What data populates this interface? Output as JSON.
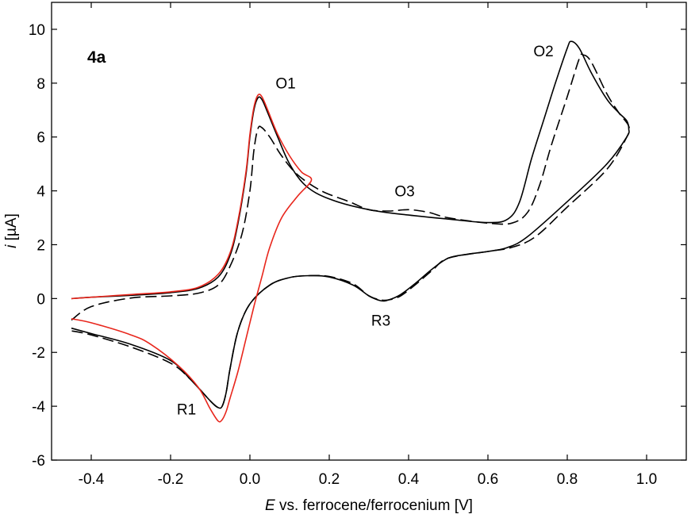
{
  "chart_data": {
    "type": "line",
    "panel_label": "4a",
    "xlabel": {
      "italic": "E",
      "rest": " vs. ferrocene/ferrocenium [V]"
    },
    "ylabel": {
      "italic": "i",
      "rest": " [µA]"
    },
    "xlim": [
      -0.5,
      1.1
    ],
    "ylim": [
      -6,
      11
    ],
    "x_ticks": [
      -0.4,
      -0.2,
      0.0,
      0.2,
      0.4,
      0.6,
      0.8,
      1.0
    ],
    "x_tick_labels": [
      "-0.4",
      "-0.2",
      "0.0",
      "0.2",
      "0.4",
      "0.6",
      "0.8",
      "1.0"
    ],
    "y_ticks": [
      -6,
      -4,
      -2,
      0,
      2,
      4,
      6,
      8,
      10
    ],
    "y_tick_labels": [
      "-6",
      "-4",
      "-2",
      "0",
      "2",
      "4",
      "6",
      "8",
      "10"
    ],
    "grid": false,
    "annotations": [
      {
        "text": "O1",
        "x": 0.09,
        "y": 7.8
      },
      {
        "text": "O2",
        "x": 0.74,
        "y": 9.0
      },
      {
        "text": "O3",
        "x": 0.39,
        "y": 3.8
      },
      {
        "text": "R1",
        "x": -0.16,
        "y": -4.3
      },
      {
        "text": "R3",
        "x": 0.33,
        "y": -1.0
      }
    ],
    "series": [
      {
        "color": "#000000",
        "dash": "solid",
        "points": [
          [
            -0.45,
            0.0
          ],
          [
            -0.4,
            0.05
          ],
          [
            -0.3,
            0.12
          ],
          [
            -0.2,
            0.22
          ],
          [
            -0.13,
            0.38
          ],
          [
            -0.08,
            0.8
          ],
          [
            -0.05,
            1.6
          ],
          [
            -0.03,
            2.8
          ],
          [
            -0.01,
            4.6
          ],
          [
            0.0,
            6.0
          ],
          [
            0.01,
            7.0
          ],
          [
            0.02,
            7.45
          ],
          [
            0.03,
            7.4
          ],
          [
            0.045,
            6.9
          ],
          [
            0.07,
            6.0
          ],
          [
            0.1,
            5.0
          ],
          [
            0.14,
            4.2
          ],
          [
            0.2,
            3.7
          ],
          [
            0.3,
            3.3
          ],
          [
            0.4,
            3.1
          ],
          [
            0.5,
            2.95
          ],
          [
            0.6,
            2.82
          ],
          [
            0.65,
            2.95
          ],
          [
            0.68,
            3.6
          ],
          [
            0.71,
            5.2
          ],
          [
            0.74,
            6.6
          ],
          [
            0.77,
            8.0
          ],
          [
            0.8,
            9.3
          ],
          [
            0.81,
            9.55
          ],
          [
            0.83,
            9.3
          ],
          [
            0.86,
            8.4
          ],
          [
            0.9,
            7.4
          ],
          [
            0.93,
            6.9
          ],
          [
            0.95,
            6.6
          ],
          [
            0.955,
            6.3
          ],
          [
            0.95,
            6.0
          ],
          [
            0.9,
            5.0
          ],
          [
            0.8,
            3.6
          ],
          [
            0.7,
            2.3
          ],
          [
            0.65,
            1.9
          ],
          [
            0.6,
            1.75
          ],
          [
            0.55,
            1.65
          ],
          [
            0.5,
            1.5
          ],
          [
            0.46,
            1.1
          ],
          [
            0.42,
            0.6
          ],
          [
            0.38,
            0.15
          ],
          [
            0.35,
            -0.05
          ],
          [
            0.33,
            -0.08
          ],
          [
            0.3,
            0.1
          ],
          [
            0.26,
            0.5
          ],
          [
            0.2,
            0.8
          ],
          [
            0.15,
            0.85
          ],
          [
            0.1,
            0.78
          ],
          [
            0.05,
            0.5
          ],
          [
            0.0,
            -0.2
          ],
          [
            -0.03,
            -1.2
          ],
          [
            -0.05,
            -2.6
          ],
          [
            -0.06,
            -3.5
          ],
          [
            -0.07,
            -4.0
          ],
          [
            -0.08,
            -4.05
          ],
          [
            -0.1,
            -3.8
          ],
          [
            -0.15,
            -3.0
          ],
          [
            -0.2,
            -2.3
          ],
          [
            -0.3,
            -1.7
          ],
          [
            -0.4,
            -1.3
          ],
          [
            -0.45,
            -1.1
          ]
        ]
      },
      {
        "color": "#000000",
        "dash": "dashed",
        "points": [
          [
            -0.45,
            -0.8
          ],
          [
            -0.4,
            -0.3
          ],
          [
            -0.3,
            0.02
          ],
          [
            -0.2,
            0.1
          ],
          [
            -0.13,
            0.2
          ],
          [
            -0.08,
            0.5
          ],
          [
            -0.05,
            1.2
          ],
          [
            -0.02,
            2.4
          ],
          [
            0.0,
            4.0
          ],
          [
            0.01,
            5.5
          ],
          [
            0.02,
            6.3
          ],
          [
            0.03,
            6.35
          ],
          [
            0.05,
            6.0
          ],
          [
            0.08,
            5.3
          ],
          [
            0.12,
            4.6
          ],
          [
            0.18,
            4.0
          ],
          [
            0.25,
            3.6
          ],
          [
            0.3,
            3.3
          ],
          [
            0.35,
            3.25
          ],
          [
            0.4,
            3.3
          ],
          [
            0.45,
            3.2
          ],
          [
            0.5,
            3.0
          ],
          [
            0.6,
            2.8
          ],
          [
            0.66,
            2.8
          ],
          [
            0.7,
            3.2
          ],
          [
            0.73,
            4.2
          ],
          [
            0.76,
            5.7
          ],
          [
            0.8,
            7.5
          ],
          [
            0.83,
            8.9
          ],
          [
            0.84,
            9.05
          ],
          [
            0.86,
            8.8
          ],
          [
            0.9,
            7.6
          ],
          [
            0.93,
            6.9
          ],
          [
            0.955,
            6.4
          ],
          [
            0.95,
            6.0
          ],
          [
            0.9,
            4.8
          ],
          [
            0.8,
            3.4
          ],
          [
            0.72,
            2.3
          ],
          [
            0.66,
            1.9
          ],
          [
            0.6,
            1.75
          ],
          [
            0.5,
            1.5
          ],
          [
            0.46,
            1.05
          ],
          [
            0.42,
            0.55
          ],
          [
            0.38,
            0.1
          ],
          [
            0.35,
            -0.05
          ],
          [
            0.33,
            -0.05
          ],
          [
            0.3,
            0.1
          ],
          [
            0.26,
            0.55
          ],
          [
            0.2,
            0.82
          ],
          [
            0.15,
            0.85
          ],
          [
            0.1,
            0.78
          ],
          [
            0.05,
            0.5
          ],
          [
            0.0,
            -0.2
          ],
          [
            -0.03,
            -1.2
          ],
          [
            -0.05,
            -2.6
          ],
          [
            -0.06,
            -3.5
          ],
          [
            -0.07,
            -4.0
          ],
          [
            -0.08,
            -4.05
          ],
          [
            -0.1,
            -3.8
          ],
          [
            -0.15,
            -3.0
          ],
          [
            -0.2,
            -2.4
          ],
          [
            -0.3,
            -1.8
          ],
          [
            -0.4,
            -1.35
          ],
          [
            -0.45,
            -1.2
          ]
        ]
      },
      {
        "color": "#e8261c",
        "dash": "solid",
        "points": [
          [
            -0.45,
            0.0
          ],
          [
            -0.4,
            0.05
          ],
          [
            -0.3,
            0.15
          ],
          [
            -0.2,
            0.25
          ],
          [
            -0.13,
            0.42
          ],
          [
            -0.08,
            0.9
          ],
          [
            -0.05,
            1.7
          ],
          [
            -0.03,
            2.9
          ],
          [
            -0.01,
            4.7
          ],
          [
            0.0,
            6.1
          ],
          [
            0.01,
            7.1
          ],
          [
            0.02,
            7.55
          ],
          [
            0.03,
            7.5
          ],
          [
            0.045,
            7.0
          ],
          [
            0.07,
            6.1
          ],
          [
            0.1,
            5.3
          ],
          [
            0.13,
            4.7
          ],
          [
            0.155,
            4.4
          ],
          [
            0.12,
            3.8
          ],
          [
            0.08,
            3.0
          ],
          [
            0.05,
            1.9
          ],
          [
            0.03,
            0.8
          ],
          [
            0.01,
            -0.3
          ],
          [
            -0.01,
            -1.5
          ],
          [
            -0.03,
            -2.7
          ],
          [
            -0.05,
            -3.7
          ],
          [
            -0.06,
            -4.2
          ],
          [
            -0.07,
            -4.5
          ],
          [
            -0.08,
            -4.55
          ],
          [
            -0.1,
            -4.1
          ],
          [
            -0.13,
            -3.3
          ],
          [
            -0.18,
            -2.5
          ],
          [
            -0.25,
            -1.7
          ],
          [
            -0.3,
            -1.35
          ],
          [
            -0.4,
            -0.9
          ],
          [
            -0.45,
            -0.75
          ]
        ]
      }
    ]
  }
}
